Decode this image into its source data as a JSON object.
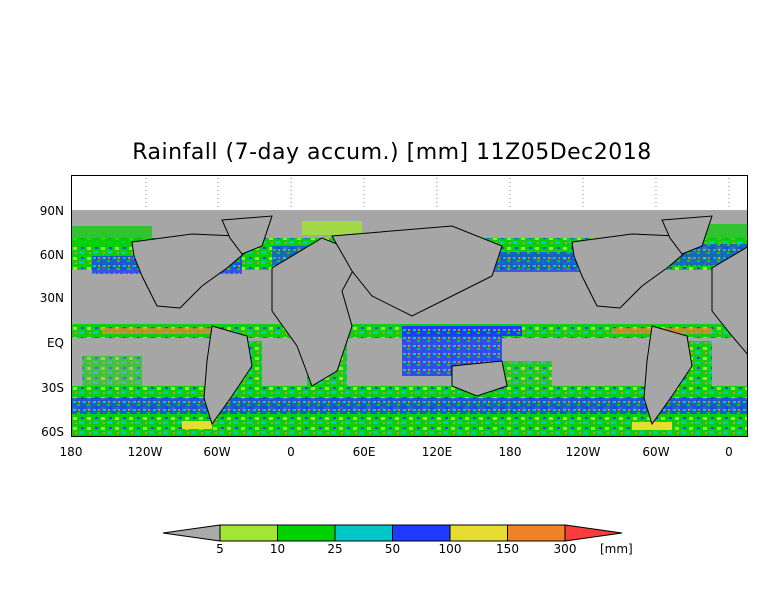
{
  "title": "Rainfall (7-day accum.) [mm] 11Z05Dec2018",
  "y_axis_labels": [
    "90N",
    "60N",
    "30N",
    "EQ",
    "30S",
    "60S"
  ],
  "x_axis_labels": [
    "180",
    "120W",
    "60W",
    "0",
    "60E",
    "120E",
    "180",
    "120W",
    "60W",
    "0"
  ],
  "colorbar": {
    "levels": [
      "5",
      "10",
      "25",
      "50",
      "100",
      "150",
      "300"
    ],
    "unit": "[mm]",
    "colors": [
      "#aaaaaa",
      "#a0e632",
      "#00d200",
      "#00c8c8",
      "#1e3cff",
      "#e6dc32",
      "#f08228",
      "#fa3c3c"
    ]
  },
  "colors": {
    "no_data": "#a6a6a6",
    "land_outline": "#000000"
  }
}
